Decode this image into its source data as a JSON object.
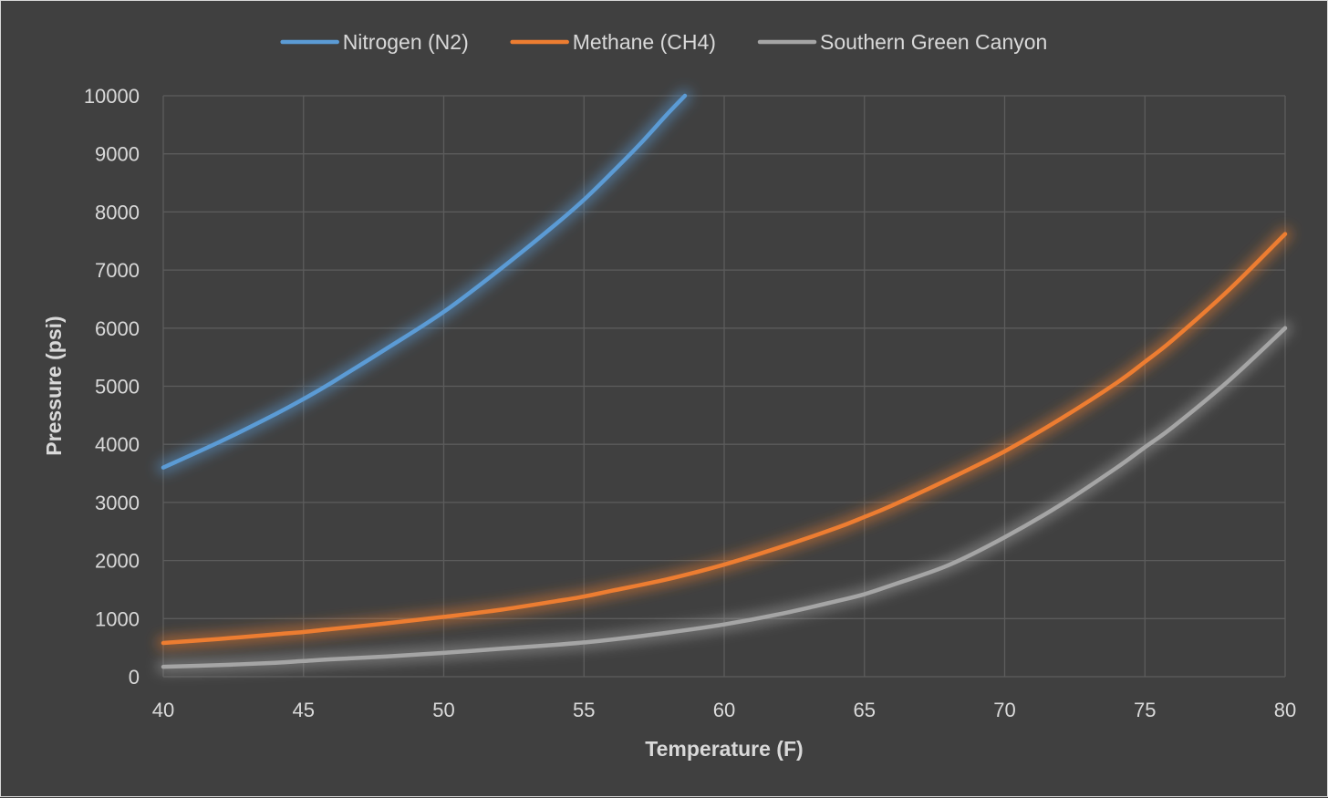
{
  "chart_data": {
    "type": "line",
    "title": "",
    "xlabel": "Temperature (F)",
    "ylabel": "Pressure (psi)",
    "xlim": [
      40,
      80
    ],
    "ylim": [
      0,
      10000
    ],
    "x_ticks": [
      40,
      45,
      50,
      55,
      60,
      65,
      70,
      75,
      80
    ],
    "y_ticks": [
      0,
      1000,
      2000,
      3000,
      4000,
      5000,
      6000,
      7000,
      8000,
      9000,
      10000
    ],
    "grid": true,
    "legend_position": "top",
    "series": [
      {
        "name": "Nitrogen (N2)",
        "color": "#5b9bd5",
        "points": [
          [
            40,
            3600
          ],
          [
            42,
            4040
          ],
          [
            44,
            4520
          ],
          [
            45,
            4780
          ],
          [
            46,
            5060
          ],
          [
            48,
            5660
          ],
          [
            50,
            6280
          ],
          [
            52,
            7010
          ],
          [
            54,
            7790
          ],
          [
            55,
            8210
          ],
          [
            56,
            8680
          ],
          [
            57,
            9170
          ],
          [
            58,
            9700
          ],
          [
            58.6,
            10000
          ]
        ]
      },
      {
        "name": "Methane (CH4)",
        "color": "#ed7d31",
        "points": [
          [
            40,
            580
          ],
          [
            42,
            650
          ],
          [
            44,
            730
          ],
          [
            45,
            770
          ],
          [
            46,
            820
          ],
          [
            48,
            920
          ],
          [
            50,
            1030
          ],
          [
            52,
            1150
          ],
          [
            54,
            1300
          ],
          [
            55,
            1380
          ],
          [
            56,
            1480
          ],
          [
            58,
            1680
          ],
          [
            60,
            1930
          ],
          [
            62,
            2230
          ],
          [
            64,
            2560
          ],
          [
            65,
            2750
          ],
          [
            66,
            2950
          ],
          [
            68,
            3400
          ],
          [
            70,
            3880
          ],
          [
            72,
            4440
          ],
          [
            74,
            5060
          ],
          [
            75,
            5420
          ],
          [
            76,
            5800
          ],
          [
            78,
            6660
          ],
          [
            80,
            7620
          ]
        ]
      },
      {
        "name": "Southern Green Canyon",
        "color": "#a5a5a5",
        "points": [
          [
            40,
            170
          ],
          [
            42,
            200
          ],
          [
            44,
            240
          ],
          [
            45,
            270
          ],
          [
            46,
            300
          ],
          [
            48,
            350
          ],
          [
            50,
            410
          ],
          [
            52,
            480
          ],
          [
            54,
            550
          ],
          [
            55,
            590
          ],
          [
            56,
            640
          ],
          [
            58,
            760
          ],
          [
            60,
            900
          ],
          [
            62,
            1080
          ],
          [
            64,
            1300
          ],
          [
            65,
            1420
          ],
          [
            66,
            1580
          ],
          [
            68,
            1920
          ],
          [
            70,
            2400
          ],
          [
            72,
            2960
          ],
          [
            74,
            3600
          ],
          [
            75,
            3950
          ],
          [
            76,
            4300
          ],
          [
            78,
            5100
          ],
          [
            80,
            6000
          ]
        ]
      }
    ]
  }
}
